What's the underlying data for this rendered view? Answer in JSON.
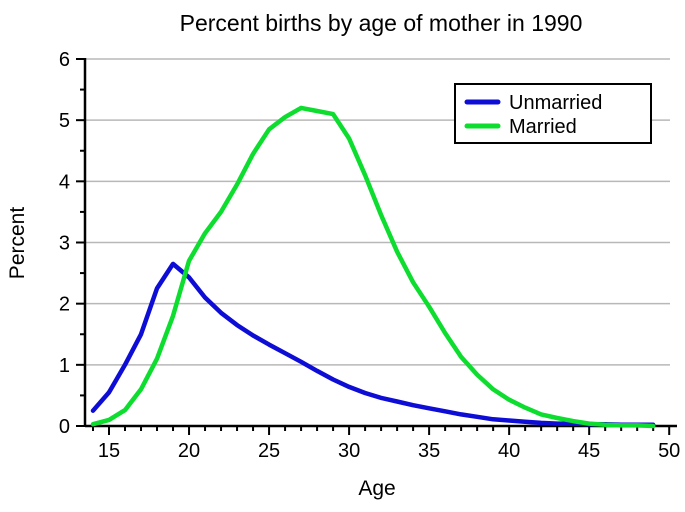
{
  "chart_data": {
    "type": "line",
    "title": "Percent births by age of mother in 1990",
    "xlabel": "Age",
    "ylabel": "Percent",
    "x_range": [
      13.5,
      50.3
    ],
    "y_range": [
      0,
      6
    ],
    "x_major_ticks": [
      15,
      20,
      25,
      30,
      35,
      40,
      45,
      50
    ],
    "x_minor_step": 1,
    "y_major_ticks": [
      0,
      1,
      2,
      3,
      4,
      5,
      6
    ],
    "y_minor_step": 0.5,
    "grid": "horizontal-gray-lines-at-integers",
    "legend_position": "top-right-boxed",
    "x": [
      14,
      15,
      16,
      17,
      18,
      19,
      20,
      21,
      22,
      23,
      24,
      25,
      26,
      27,
      28,
      29,
      30,
      31,
      32,
      33,
      34,
      35,
      36,
      37,
      38,
      39,
      40,
      41,
      42,
      43,
      44,
      45,
      46,
      47,
      48,
      49
    ],
    "series": [
      {
        "name": "Unmarried",
        "color": "#0d0dd6",
        "values": [
          0.25,
          0.55,
          1.0,
          1.5,
          2.25,
          2.65,
          2.43,
          2.1,
          1.85,
          1.65,
          1.48,
          1.33,
          1.19,
          1.05,
          0.9,
          0.76,
          0.64,
          0.54,
          0.46,
          0.4,
          0.34,
          0.29,
          0.24,
          0.19,
          0.15,
          0.11,
          0.09,
          0.07,
          0.05,
          0.04,
          0.04,
          0.03,
          0.03,
          0.02,
          0.02,
          0.02
        ]
      },
      {
        "name": "Married",
        "color": "#0ddd2e",
        "values": [
          0.03,
          0.1,
          0.26,
          0.6,
          1.1,
          1.8,
          2.7,
          3.15,
          3.5,
          3.95,
          4.45,
          4.85,
          5.05,
          5.2,
          5.15,
          5.1,
          4.7,
          4.1,
          3.45,
          2.85,
          2.35,
          1.95,
          1.52,
          1.13,
          0.84,
          0.6,
          0.43,
          0.3,
          0.19,
          0.13,
          0.08,
          0.04,
          0.02,
          0.01,
          0.01,
          0.0
        ]
      }
    ],
    "colors": {
      "grid": "#b8b8b8",
      "axis": "#000000",
      "background": "#ffffff",
      "legend_border": "#000000"
    }
  }
}
